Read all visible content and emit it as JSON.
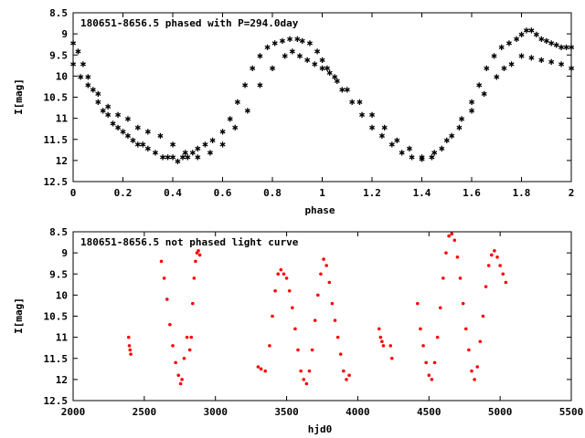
{
  "colors": {
    "points": "#ff0000",
    "frame": "#000000",
    "background": "#ffffff"
  },
  "chart_data": [
    {
      "type": "scatter",
      "title": "180651-8656.5 phased with P=294.0day",
      "xlabel": "phase",
      "ylabel": "I[mag]",
      "xlim": [
        0,
        2
      ],
      "ylim": [
        12.5,
        8.5
      ],
      "y_inverted": true,
      "xticks": [
        "0",
        "0.2",
        "0.4",
        "0.6",
        "0.8",
        "1",
        "1.2",
        "1.4",
        "1.6",
        "1.8",
        "2"
      ],
      "yticks": [
        "8.5",
        "9",
        "9.5",
        "10",
        "10.5",
        "11",
        "11.5",
        "12",
        "12.5"
      ],
      "grid": false,
      "marker": "star",
      "series": [
        {
          "x": [
            0.0,
            0.02,
            0.04,
            0.06,
            0.08,
            0.1,
            0.12,
            0.14,
            0.16,
            0.18,
            0.2,
            0.22,
            0.24,
            0.26,
            0.28,
            0.3,
            0.33,
            0.36,
            0.38,
            0.4,
            0.42,
            0.44,
            0.46,
            0.48,
            0.5,
            0.53,
            0.56,
            0.6,
            0.63,
            0.66,
            0.69,
            0.72,
            0.75,
            0.78,
            0.81,
            0.84,
            0.87,
            0.9,
            0.92,
            0.95,
            0.98,
            1.0,
            1.02,
            1.05,
            1.08,
            1.12,
            1.16,
            1.2,
            1.24,
            1.28,
            1.32,
            1.36,
            1.4,
            1.44,
            1.48,
            1.52,
            1.56,
            1.6,
            1.63,
            1.66,
            1.69,
            1.72,
            1.75,
            1.78,
            1.8,
            1.82,
            1.84,
            1.86,
            1.88,
            1.9,
            1.92,
            1.94,
            1.96,
            1.98,
            2.0
          ],
          "y": [
            9.2,
            9.4,
            9.7,
            10.0,
            10.3,
            10.6,
            10.8,
            10.9,
            11.1,
            11.2,
            11.3,
            11.4,
            11.5,
            11.6,
            11.6,
            11.7,
            11.8,
            11.9,
            11.9,
            11.9,
            12.0,
            11.9,
            11.9,
            11.8,
            11.7,
            11.6,
            11.5,
            11.3,
            11.0,
            10.6,
            10.2,
            9.8,
            9.5,
            9.3,
            9.2,
            9.15,
            9.1,
            9.1,
            9.15,
            9.2,
            9.4,
            9.6,
            9.8,
            10.0,
            10.3,
            10.6,
            10.9,
            11.2,
            11.4,
            11.6,
            11.8,
            11.9,
            11.95,
            11.9,
            11.7,
            11.4,
            11.0,
            10.6,
            10.2,
            9.8,
            9.5,
            9.3,
            9.2,
            9.1,
            9.0,
            8.9,
            8.9,
            9.0,
            9.1,
            9.15,
            9.2,
            9.25,
            9.3,
            9.3,
            9.3
          ]
        },
        {
          "x": [
            0.0,
            0.03,
            0.06,
            0.1,
            0.14,
            0.18,
            0.22,
            0.26,
            0.3,
            0.35,
            0.4,
            0.45,
            0.5,
            0.55,
            0.6,
            0.65,
            0.7,
            0.75,
            0.8,
            0.85,
            0.88,
            0.91,
            0.94,
            0.97,
            1.0,
            1.03,
            1.06,
            1.1,
            1.15,
            1.2,
            1.25,
            1.3,
            1.35,
            1.4,
            1.45,
            1.5,
            1.55,
            1.6,
            1.65,
            1.7,
            1.73,
            1.76,
            1.8,
            1.84,
            1.88,
            1.92,
            1.96,
            2.0
          ],
          "y": [
            9.7,
            10.0,
            10.2,
            10.4,
            10.7,
            10.9,
            11.0,
            11.2,
            11.3,
            11.4,
            11.6,
            11.8,
            11.9,
            11.8,
            11.6,
            11.2,
            10.8,
            10.2,
            9.8,
            9.5,
            9.4,
            9.5,
            9.6,
            9.7,
            9.8,
            9.9,
            10.1,
            10.3,
            10.6,
            10.9,
            11.2,
            11.5,
            11.7,
            11.9,
            11.8,
            11.5,
            11.2,
            10.8,
            10.4,
            10.0,
            9.8,
            9.7,
            9.5,
            9.55,
            9.6,
            9.65,
            9.7,
            9.8
          ]
        }
      ]
    },
    {
      "type": "scatter",
      "title": "180651-8656.5 not phased light curve",
      "xlabel": "hjd0",
      "ylabel": "I[mag]",
      "xlim": [
        2000,
        5500
      ],
      "ylim": [
        12.5,
        8.5
      ],
      "y_inverted": true,
      "xticks": [
        "2000",
        "2500",
        "3000",
        "3500",
        "4000",
        "4500",
        "5000",
        "5500"
      ],
      "yticks": [
        "8.5",
        "9",
        "9.5",
        "10",
        "10.5",
        "11",
        "11.5",
        "12",
        "12.5"
      ],
      "grid": false,
      "marker": "dot",
      "series": [
        {
          "x": [
            2390,
            2395,
            2400,
            2405,
            2620,
            2640,
            2660,
            2680,
            2700,
            2720,
            2740,
            2755,
            2765,
            2780,
            2800,
            2820,
            2830,
            2840,
            2850,
            2860,
            2870,
            2880,
            2890,
            3300,
            3320,
            3350,
            3380,
            3400,
            3420,
            3440,
            3460,
            3480,
            3500,
            3520,
            3540,
            3560,
            3580,
            3600,
            3620,
            3640,
            3660,
            3680,
            3700,
            3720,
            3740,
            3760,
            3780,
            3800,
            3820,
            3840,
            3860,
            3880,
            3900,
            3920,
            3940,
            4150,
            4160,
            4170,
            4180,
            4230,
            4240,
            4420,
            4440,
            4460,
            4480,
            4500,
            4520,
            4540,
            4560,
            4580,
            4600,
            4620,
            4640,
            4660,
            4680,
            4700,
            4720,
            4740,
            4760,
            4780,
            4800,
            4820,
            4840,
            4860,
            4880,
            4900,
            4920,
            4940,
            4960,
            4980,
            5000,
            5020,
            5040
          ],
          "y": [
            11.0,
            11.2,
            11.3,
            11.4,
            9.2,
            9.6,
            10.1,
            10.7,
            11.2,
            11.6,
            11.9,
            12.1,
            12.0,
            11.5,
            11.0,
            11.3,
            11.0,
            10.2,
            9.6,
            9.2,
            9.0,
            8.95,
            9.05,
            11.7,
            11.75,
            11.8,
            11.2,
            10.5,
            9.9,
            9.5,
            9.4,
            9.5,
            9.6,
            9.9,
            10.3,
            10.8,
            11.3,
            11.8,
            12.0,
            12.1,
            11.8,
            11.3,
            10.6,
            10.0,
            9.5,
            9.15,
            9.3,
            9.7,
            10.2,
            10.6,
            11.0,
            11.4,
            11.8,
            12.0,
            11.9,
            10.8,
            11.0,
            11.1,
            11.2,
            11.2,
            11.5,
            10.2,
            10.8,
            11.2,
            11.6,
            11.9,
            12.0,
            11.6,
            11.0,
            10.3,
            9.6,
            9.0,
            8.6,
            8.55,
            8.7,
            9.1,
            9.6,
            10.2,
            10.8,
            11.3,
            11.8,
            12.0,
            11.7,
            11.1,
            10.5,
            9.8,
            9.3,
            9.05,
            8.95,
            9.1,
            9.3,
            9.5,
            9.7
          ]
        }
      ]
    }
  ]
}
